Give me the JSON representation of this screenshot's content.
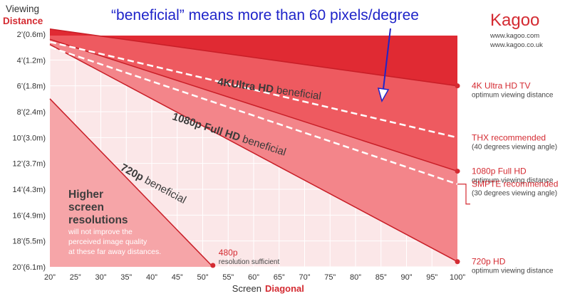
{
  "chart_data": {
    "type": "area",
    "title": "“beneficial” means more than 60 pixels/degree",
    "ylabel_line1": "Viewing",
    "ylabel_line2": "Distance",
    "xlabel_prefix": "Screen",
    "xlabel_emph": "Diagonal",
    "x_ticks": [
      "20”",
      "25”",
      "30”",
      "35”",
      "40”",
      "45”",
      "50”",
      "55”",
      "60”",
      "65”",
      "70”",
      "75”",
      "80”",
      "85”",
      "90”",
      "95”",
      "100”"
    ],
    "x_range": [
      20,
      100
    ],
    "y_ticks": [
      "2’(0.6m)",
      "4’(1.2m)",
      "6’(1.8m)",
      "8’(2.4m)",
      "10’(3.0m)",
      "12’(3.7m)",
      "14’(4.3m)",
      "16’(4.9m)",
      "18’(5.5m)",
      "20’(6.1m)"
    ],
    "y_range_ft": [
      2,
      20
    ],
    "series": [
      {
        "name": "4K Ultra HD TV",
        "sub": "optimum viewing distance",
        "points": [
          [
            20,
            1.6
          ],
          [
            100,
            6.0
          ]
        ],
        "color": "#e8323c"
      },
      {
        "name": "1080p Full HD",
        "sub": "optimum viewing distance",
        "points": [
          [
            20,
            2.4
          ],
          [
            100,
            12.6
          ]
        ],
        "color": "#ee5a60"
      },
      {
        "name": "720p HD",
        "sub": "optimum viewing distance",
        "points": [
          [
            20,
            2.8
          ],
          [
            100,
            19.6
          ]
        ],
        "color": "#f3858a"
      },
      {
        "name": "480p",
        "sub": "resolution sufficient",
        "points": [
          [
            20,
            7.0
          ],
          [
            52,
            20.0
          ]
        ],
        "color": "#f6a5a8"
      }
    ],
    "reference_lines": [
      {
        "name": "THX recommended",
        "sub": "(40 degrees viewing angle)",
        "points": [
          [
            20,
            2.6
          ],
          [
            100,
            10.0
          ]
        ]
      },
      {
        "name": "SMPTE recommended",
        "sub": "(30 degrees viewing angle)",
        "points": [
          [
            20,
            3.0
          ],
          [
            100,
            13.6
          ]
        ]
      }
    ],
    "area_labels": [
      {
        "bold": "4KUltra HD",
        "normal": " beneficial",
        "x": 63,
        "y": 6.5
      },
      {
        "bold": "1080p Full HD",
        "normal": " beneficial",
        "x": 55,
        "y": 10.0
      },
      {
        "bold": "720p",
        "normal": " beneficial",
        "x": 40,
        "y": 13.8
      }
    ],
    "note": {
      "heading": [
        "Higher",
        "screen",
        "resolutions"
      ],
      "body": [
        "will not improve the",
        "perceived image quality",
        "at these far away distances."
      ]
    },
    "arrow_points_to": "4KUltra HD beneficial"
  },
  "brand": {
    "name": "Kagoo",
    "url1": "www.kagoo.com",
    "url2": "www.kagoo.co.uk"
  },
  "colors": {
    "accent": "#d42b32",
    "chart_bg": "#fbe7e8",
    "title": "#1f24c9"
  }
}
